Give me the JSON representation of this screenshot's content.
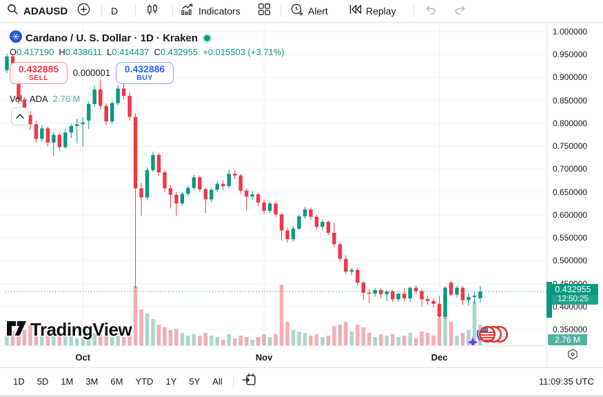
{
  "toolbar_top": {
    "symbol": "ADAUSD",
    "interval": "D",
    "indicators_label": "Indicators",
    "alert_label": "Alert",
    "replay_label": "Replay",
    "icons": [
      "search-icon",
      "compare-plus-icon",
      "candlestick-style-icon",
      "indicators-icon",
      "layout-grid-icon",
      "alert-clock-icon",
      "replay-rewind-icon",
      "undo-icon",
      "redo-icon"
    ]
  },
  "legend": {
    "title": "Cardano / U. S. Dollar · 1D · Kraken",
    "ohlc": {
      "o_label": "O",
      "o": "0.417190",
      "h_label": "H",
      "h": "0.438611",
      "l_label": "L",
      "l": "0.414437",
      "c_label": "C",
      "c": "0.432955",
      "change": "+0.015503 (+3.71%)"
    },
    "volume_label": "Vol · ADA",
    "volume_value": "2.76 M"
  },
  "trade_buttons": {
    "sell_price": "0.432885",
    "sell_label": "SELL",
    "spread": "0.000001",
    "buy_price": "0.432886",
    "buy_label": "BUY"
  },
  "price_scale": {
    "labels": [
      "1.000000",
      "0.950000",
      "0.900000",
      "0.850000",
      "0.800000",
      "0.750000",
      "0.700000",
      "0.650000",
      "0.600000",
      "0.550000",
      "0.500000",
      "0.450000",
      "0.400000",
      "0.350000"
    ],
    "last_price_label": "0.432955",
    "countdown": "12:50:25",
    "volume_badge": "2.76 M"
  },
  "toolbar_bottom": {
    "ranges": [
      "1D",
      "5D",
      "1M",
      "3M",
      "6M",
      "YTD",
      "1Y",
      "5Y",
      "All"
    ],
    "clock": "11:09:35 UTC"
  },
  "watermark_text": "TradingView",
  "colors": {
    "up": "#089981",
    "down": "#f23645",
    "vol_up": "#a9d7ce",
    "vol_down": "#f4adb1",
    "accent_blue": "#2962ff",
    "text": "#131722",
    "muted": "#b2b5be",
    "grid": "#f0f3fa",
    "border": "#e0e3eb",
    "badge_green": "#089981",
    "badge_vol": "#54b1a5",
    "vol_value_text": "#4fb0a5"
  },
  "chart_data": {
    "type": "candlestick",
    "symbol": "ADAUSD",
    "name": "Cardano / U. S. Dollar",
    "interval": "1D",
    "exchange": "Kraken",
    "last_price": 0.432955,
    "price_axis": {
      "min": 0.35,
      "max": 1.0,
      "step": 0.05
    },
    "months": [
      {
        "label": "Oct",
        "index": 13
      },
      {
        "label": "Nov",
        "index": 44
      },
      {
        "label": "Dec",
        "index": 74
      }
    ],
    "candles_format": [
      "open",
      "high",
      "low",
      "close",
      "volume_px"
    ],
    "candles": [
      [
        0.916,
        0.952,
        0.91,
        0.946,
        14
      ],
      [
        0.946,
        0.95,
        0.886,
        0.894,
        20
      ],
      [
        0.894,
        0.9,
        0.843,
        0.852,
        26
      ],
      [
        0.852,
        0.858,
        0.81,
        0.818,
        22
      ],
      [
        0.818,
        0.826,
        0.786,
        0.798,
        30
      ],
      [
        0.798,
        0.805,
        0.758,
        0.766,
        26
      ],
      [
        0.766,
        0.796,
        0.76,
        0.789,
        18
      ],
      [
        0.789,
        0.793,
        0.75,
        0.758,
        22
      ],
      [
        0.758,
        0.781,
        0.729,
        0.775,
        28
      ],
      [
        0.775,
        0.779,
        0.74,
        0.748,
        20
      ],
      [
        0.748,
        0.786,
        0.744,
        0.78,
        16
      ],
      [
        0.78,
        0.799,
        0.768,
        0.794,
        14
      ],
      [
        0.794,
        0.81,
        0.756,
        0.798,
        10
      ],
      [
        0.798,
        0.814,
        0.748,
        0.802,
        10
      ],
      [
        0.806,
        0.848,
        0.788,
        0.842,
        14
      ],
      [
        0.842,
        0.882,
        0.836,
        0.874,
        18
      ],
      [
        0.874,
        0.896,
        0.83,
        0.838,
        16
      ],
      [
        0.838,
        0.844,
        0.796,
        0.804,
        14
      ],
      [
        0.804,
        0.85,
        0.798,
        0.844,
        12
      ],
      [
        0.844,
        0.884,
        0.84,
        0.876,
        14
      ],
      [
        0.876,
        0.89,
        0.852,
        0.86,
        12
      ],
      [
        0.86,
        0.868,
        0.806,
        0.814,
        16
      ],
      [
        0.814,
        0.822,
        0.44,
        0.658,
        86
      ],
      [
        0.658,
        0.67,
        0.598,
        0.638,
        52
      ],
      [
        0.638,
        0.704,
        0.632,
        0.698,
        46
      ],
      [
        0.698,
        0.738,
        0.694,
        0.731,
        38
      ],
      [
        0.731,
        0.736,
        0.686,
        0.693,
        30
      ],
      [
        0.693,
        0.698,
        0.65,
        0.658,
        26
      ],
      [
        0.658,
        0.665,
        0.614,
        0.644,
        22
      ],
      [
        0.644,
        0.65,
        0.598,
        0.625,
        24
      ],
      [
        0.625,
        0.65,
        0.62,
        0.646,
        18
      ],
      [
        0.646,
        0.664,
        0.641,
        0.659,
        14
      ],
      [
        0.659,
        0.688,
        0.654,
        0.682,
        16
      ],
      [
        0.682,
        0.686,
        0.65,
        0.656,
        14
      ],
      [
        0.656,
        0.66,
        0.604,
        0.634,
        18
      ],
      [
        0.634,
        0.66,
        0.628,
        0.655,
        14
      ],
      [
        0.655,
        0.674,
        0.65,
        0.668,
        12
      ],
      [
        0.668,
        0.676,
        0.654,
        0.663,
        8
      ],
      [
        0.663,
        0.698,
        0.658,
        0.69,
        16
      ],
      [
        0.69,
        0.698,
        0.678,
        0.686,
        10
      ],
      [
        0.686,
        0.69,
        0.646,
        0.653,
        14
      ],
      [
        0.653,
        0.658,
        0.61,
        0.64,
        12
      ],
      [
        0.64,
        0.652,
        0.633,
        0.645,
        8
      ],
      [
        0.645,
        0.648,
        0.62,
        0.627,
        12
      ],
      [
        0.627,
        0.634,
        0.602,
        0.609,
        16
      ],
      [
        0.609,
        0.63,
        0.604,
        0.625,
        12
      ],
      [
        0.625,
        0.629,
        0.596,
        0.601,
        16
      ],
      [
        0.601,
        0.605,
        0.544,
        0.566,
        88
      ],
      [
        0.566,
        0.572,
        0.54,
        0.547,
        34
      ],
      [
        0.547,
        0.575,
        0.542,
        0.57,
        22
      ],
      [
        0.57,
        0.602,
        0.566,
        0.597,
        20
      ],
      [
        0.597,
        0.617,
        0.592,
        0.612,
        18
      ],
      [
        0.612,
        0.616,
        0.59,
        0.596,
        14
      ],
      [
        0.596,
        0.6,
        0.568,
        0.574,
        16
      ],
      [
        0.574,
        0.59,
        0.566,
        0.585,
        12
      ],
      [
        0.585,
        0.588,
        0.556,
        0.561,
        14
      ],
      [
        0.561,
        0.584,
        0.53,
        0.536,
        28
      ],
      [
        0.536,
        0.54,
        0.498,
        0.504,
        30
      ],
      [
        0.504,
        0.512,
        0.47,
        0.476,
        34
      ],
      [
        0.476,
        0.484,
        0.468,
        0.48,
        20
      ],
      [
        0.48,
        0.484,
        0.446,
        0.452,
        30
      ],
      [
        0.452,
        0.456,
        0.414,
        0.43,
        26
      ],
      [
        0.43,
        0.438,
        0.407,
        0.428,
        18
      ],
      [
        0.428,
        0.44,
        0.422,
        0.436,
        12
      ],
      [
        0.436,
        0.44,
        0.418,
        0.427,
        16
      ],
      [
        0.427,
        0.437,
        0.412,
        0.433,
        14
      ],
      [
        0.433,
        0.436,
        0.41,
        0.416,
        16
      ],
      [
        0.416,
        0.432,
        0.41,
        0.428,
        12
      ],
      [
        0.428,
        0.44,
        0.412,
        0.418,
        14
      ],
      [
        0.418,
        0.444,
        0.41,
        0.441,
        18
      ],
      [
        0.441,
        0.446,
        0.428,
        0.434,
        10
      ],
      [
        0.434,
        0.438,
        0.4,
        0.416,
        20
      ],
      [
        0.416,
        0.424,
        0.404,
        0.412,
        18
      ],
      [
        0.412,
        0.418,
        0.398,
        0.406,
        14
      ],
      [
        0.406,
        0.424,
        0.374,
        0.378,
        40
      ],
      [
        0.378,
        0.444,
        0.372,
        0.441,
        42
      ],
      [
        0.452,
        0.456,
        0.422,
        0.426,
        34
      ],
      [
        0.426,
        0.445,
        0.42,
        0.441,
        14
      ],
      [
        0.441,
        0.444,
        0.404,
        0.414,
        18
      ],
      [
        0.414,
        0.43,
        0.402,
        0.421,
        22
      ],
      [
        0.421,
        0.432,
        0.406,
        0.424,
        64
      ],
      [
        0.418,
        0.445,
        0.408,
        0.433,
        30
      ]
    ]
  }
}
